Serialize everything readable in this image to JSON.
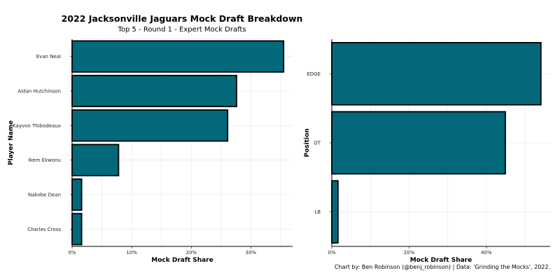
{
  "title": "2022 Jacksonville Jaguars Mock Draft Breakdown",
  "subtitle": "Top 5 - Round 1 - Expert Mock Drafts",
  "caption": "Chart by: Ben Robinson (@benj_robinson) | Data: 'Grinding the Mocks', 2022.",
  "colors": {
    "bar_fill": "#03687a",
    "bar_stroke": "#000000",
    "grid": "#ebebeb"
  },
  "chart_data": [
    {
      "type": "bar",
      "orientation": "horizontal",
      "xlabel": "Mock Draft Share",
      "ylabel": "Player Name",
      "categories": [
        "Evan Neal",
        "Aidan Hutchinson",
        "Kayvon Thibodeaux",
        "Ikem Ekwonu",
        "Nakobe Dean",
        "Charles Cross"
      ],
      "values": [
        0.355,
        0.276,
        0.261,
        0.078,
        0.016,
        0.016
      ],
      "xlim": [
        0,
        0.37
      ],
      "xticks": [
        0,
        0.1,
        0.2,
        0.3
      ],
      "xtick_labels": [
        "0%",
        "10%",
        "20%",
        "30%"
      ],
      "grid": true
    },
    {
      "type": "bar",
      "orientation": "horizontal",
      "xlabel": "Mock Draft Share",
      "ylabel": "Position",
      "categories": [
        "EDGE",
        "OT",
        "LB"
      ],
      "values": [
        0.541,
        0.449,
        0.016
      ],
      "xlim": [
        0,
        0.565
      ],
      "xticks": [
        0,
        0.2,
        0.4
      ],
      "xtick_labels": [
        "0%",
        "20%",
        "40%"
      ],
      "grid": true
    }
  ]
}
